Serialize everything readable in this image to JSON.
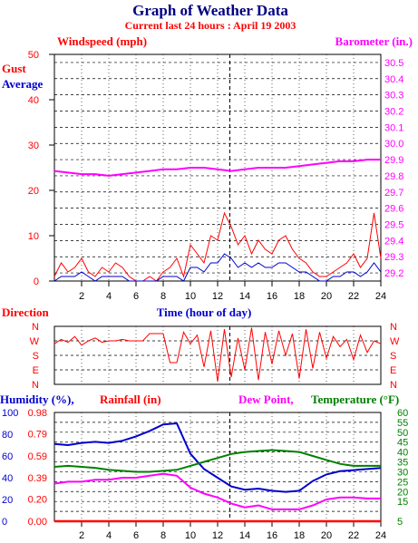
{
  "colors": {
    "red": "#ff0000",
    "blue": "#0000cc",
    "magenta": "#ff00ff",
    "green": "#008000",
    "title": "#000080",
    "grid": "#000000"
  },
  "header": {
    "title": "Graph of Weather Data",
    "subtitle": "Current last 24 hours : April 19 2003"
  },
  "chart_data": [
    {
      "type": "line",
      "panel": "wind-barometer",
      "labels": {
        "windspeed": "Windspeed (mph)",
        "barometer": "Barometer (in.)",
        "gust": "Gust",
        "average": "Average",
        "xlabel": "Time (hour of day)"
      },
      "x_ticks": [
        "2",
        "4",
        "6",
        "8",
        "10",
        "12",
        "14",
        "16",
        "18",
        "20",
        "22",
        "24"
      ],
      "xlim": [
        0,
        24
      ],
      "left_axis": {
        "ticks": [
          "0",
          "10",
          "20",
          "30",
          "40",
          "50"
        ],
        "ylim": [
          0,
          50
        ]
      },
      "right_axis": {
        "ticks": [
          "29.2",
          "29.3",
          "29.4",
          "29.5",
          "29.6",
          "29.7",
          "29.8",
          "29.9",
          "30.0",
          "30.1",
          "30.2",
          "30.3",
          "30.4",
          "30.5"
        ],
        "ylim": [
          29.15,
          30.55
        ]
      },
      "grid": true,
      "marker_hour": 12.9,
      "series": [
        {
          "key": "barometer",
          "name": "Barometer (in.)",
          "color": "#ff00ff",
          "axis": "right",
          "x": [
            0,
            1,
            2,
            3,
            4,
            5,
            6,
            7,
            8,
            9,
            10,
            11,
            12,
            13,
            14,
            15,
            16,
            17,
            18,
            19,
            20,
            21,
            22,
            23,
            24
          ],
          "values": [
            29.83,
            29.82,
            29.81,
            29.81,
            29.8,
            29.81,
            29.82,
            29.83,
            29.84,
            29.84,
            29.85,
            29.85,
            29.84,
            29.83,
            29.84,
            29.85,
            29.85,
            29.85,
            29.86,
            29.87,
            29.88,
            29.89,
            29.89,
            29.9,
            29.9
          ]
        },
        {
          "key": "gust",
          "name": "Gust",
          "color": "#ff0000",
          "axis": "left",
          "x": [
            0,
            0.5,
            1,
            1.5,
            2,
            2.5,
            3,
            3.5,
            4,
            4.5,
            5,
            5.5,
            6,
            6.5,
            7,
            7.5,
            8,
            8.5,
            9,
            9.5,
            10,
            10.5,
            11,
            11.5,
            12,
            12.5,
            13,
            13.5,
            14,
            14.5,
            15,
            15.5,
            16,
            16.5,
            17,
            17.5,
            18,
            18.5,
            19,
            19.5,
            20,
            20.5,
            21,
            21.5,
            22,
            22.5,
            23,
            23.5,
            24
          ],
          "values": [
            1,
            4,
            2,
            3,
            5,
            2,
            1,
            3,
            2,
            4,
            3,
            1,
            0,
            0,
            1,
            0,
            2,
            3,
            5,
            1,
            8,
            6,
            4,
            10,
            9,
            15,
            12,
            8,
            10,
            6,
            9,
            7,
            6,
            9,
            10,
            7,
            5,
            4,
            2,
            1,
            1,
            2,
            3,
            4,
            6,
            3,
            5,
            15,
            5
          ]
        },
        {
          "key": "average",
          "name": "Average",
          "color": "#0000cc",
          "axis": "left",
          "x": [
            0,
            0.5,
            1,
            1.5,
            2,
            2.5,
            3,
            3.5,
            4,
            4.5,
            5,
            5.5,
            6,
            6.5,
            7,
            7.5,
            8,
            8.5,
            9,
            9.5,
            10,
            10.5,
            11,
            11.5,
            12,
            12.5,
            13,
            13.5,
            14,
            14.5,
            15,
            15.5,
            16,
            16.5,
            17,
            17.5,
            18,
            18.5,
            19,
            19.5,
            20,
            20.5,
            21,
            21.5,
            22,
            22.5,
            23,
            23.5,
            24
          ],
          "values": [
            0,
            1,
            1,
            1,
            2,
            1,
            0,
            1,
            1,
            1,
            1,
            0,
            0,
            0,
            0,
            0,
            1,
            1,
            1,
            0,
            3,
            3,
            2,
            4,
            4,
            6,
            5,
            3,
            4,
            3,
            4,
            3,
            3,
            4,
            4,
            3,
            2,
            2,
            1,
            0,
            0,
            1,
            1,
            2,
            2,
            1,
            2,
            4,
            2
          ]
        }
      ]
    },
    {
      "type": "line",
      "panel": "direction",
      "labels": {
        "title": "Direction"
      },
      "xlim": [
        0,
        24
      ],
      "axis_ticks": [
        "N",
        "W",
        "S",
        "E",
        "N"
      ],
      "grid": true,
      "series": [
        {
          "key": "direction",
          "name": "Direction",
          "color": "#ff0000",
          "note_units": "compass level 0=N(bottom) 1=E 2=S 3=W 4=N(top)",
          "x": [
            0,
            0.5,
            1,
            1.5,
            2,
            2.5,
            3,
            3.5,
            4,
            4.5,
            5,
            5.5,
            6,
            6.5,
            7,
            7.5,
            8,
            8.5,
            9,
            9.5,
            10,
            10.5,
            11,
            11.5,
            12,
            12.5,
            13,
            13.5,
            14,
            14.5,
            15,
            15.5,
            16,
            16.5,
            17,
            17.5,
            18,
            18.5,
            19,
            19.5,
            20,
            20.5,
            21,
            21.5,
            22,
            22.5,
            23,
            23.5,
            24
          ],
          "values": [
            2.8,
            3.1,
            2.9,
            3.3,
            2.7,
            3.0,
            3.2,
            2.9,
            3.0,
            3.0,
            3.1,
            3.0,
            3.0,
            3.0,
            3.5,
            3.5,
            3.5,
            1.5,
            1.5,
            3.6,
            2.8,
            3.4,
            1.2,
            3.7,
            0.2,
            3.8,
            0.5,
            3.2,
            1.0,
            3.9,
            0.3,
            3.6,
            1.4,
            3.7,
            2.0,
            3.5,
            0.4,
            3.8,
            1.1,
            3.6,
            1.8,
            3.3,
            2.6,
            3.1,
            1.7,
            3.4,
            2.2,
            3.0,
            2.8
          ]
        }
      ]
    },
    {
      "type": "line",
      "panel": "humidity-temperature",
      "labels": {
        "humidity": "Humidity (%),",
        "rainfall": "Rainfall (in)",
        "dewpoint": "Dew Point,",
        "temperature": "Temperature (°F)"
      },
      "x_ticks": [
        "2",
        "4",
        "6",
        "8",
        "10",
        "12",
        "14",
        "16",
        "18",
        "20",
        "22",
        "24"
      ],
      "xlim": [
        0,
        24
      ],
      "humidity_axis": {
        "ticks": [
          "0",
          "20",
          "40",
          "60",
          "80",
          "100"
        ],
        "ylim": [
          0,
          100
        ]
      },
      "rainfall_axis": {
        "ticks": [
          "0.00",
          "0.20",
          "0.39",
          "0.59",
          "0.79",
          "0.98"
        ],
        "ylim": [
          0,
          0.98
        ]
      },
      "temperature_axis": {
        "ticks": [
          "5",
          "10",
          "15",
          "20",
          "25",
          "30",
          "35",
          "40",
          "45",
          "50",
          "55",
          "60"
        ],
        "ylim": [
          5,
          60
        ]
      },
      "grid": true,
      "marker_hour": 12.9,
      "series": [
        {
          "key": "humidity",
          "name": "Humidity (%)",
          "color": "#0000cc",
          "axis": "humidity",
          "x": [
            0,
            1,
            2,
            3,
            4,
            5,
            6,
            7,
            8,
            9,
            10,
            11,
            12,
            13,
            14,
            15,
            16,
            17,
            18,
            19,
            20,
            21,
            22,
            23,
            24
          ],
          "values": [
            71,
            70,
            72,
            73,
            72,
            74,
            78,
            83,
            89,
            90,
            62,
            48,
            40,
            32,
            29,
            30,
            28,
            27,
            28,
            37,
            43,
            46,
            47,
            48,
            49
          ]
        },
        {
          "key": "temperature",
          "name": "Temperature (°F)",
          "color": "#008000",
          "axis": "temperature",
          "x": [
            0,
            1,
            2,
            3,
            4,
            5,
            6,
            7,
            8,
            9,
            10,
            11,
            12,
            13,
            14,
            15,
            16,
            17,
            18,
            19,
            20,
            21,
            22,
            23,
            24
          ],
          "values": [
            32.5,
            33,
            32.5,
            32,
            31,
            30.5,
            30,
            30,
            30.5,
            31,
            33,
            35,
            37,
            39,
            40,
            40.5,
            41,
            40.5,
            40,
            38,
            36,
            34,
            33,
            33,
            33
          ]
        },
        {
          "key": "dewpoint",
          "name": "Dew Point",
          "color": "#ff00ff",
          "axis": "temperature",
          "x": [
            0,
            1,
            2,
            3,
            4,
            5,
            6,
            7,
            8,
            9,
            10,
            11,
            12,
            13,
            14,
            15,
            16,
            17,
            18,
            19,
            20,
            21,
            22,
            23,
            24
          ],
          "values": [
            24,
            25,
            25,
            26,
            26,
            27,
            27,
            28,
            29,
            28,
            22,
            19,
            17,
            14,
            12,
            13,
            11,
            11,
            11,
            13,
            16,
            17,
            17,
            16.5,
            16.5
          ]
        },
        {
          "key": "rainfall",
          "name": "Rainfall (in)",
          "color": "#ff0000",
          "axis": "rainfall",
          "x": [
            0,
            24
          ],
          "values": [
            0,
            0
          ]
        }
      ]
    }
  ]
}
